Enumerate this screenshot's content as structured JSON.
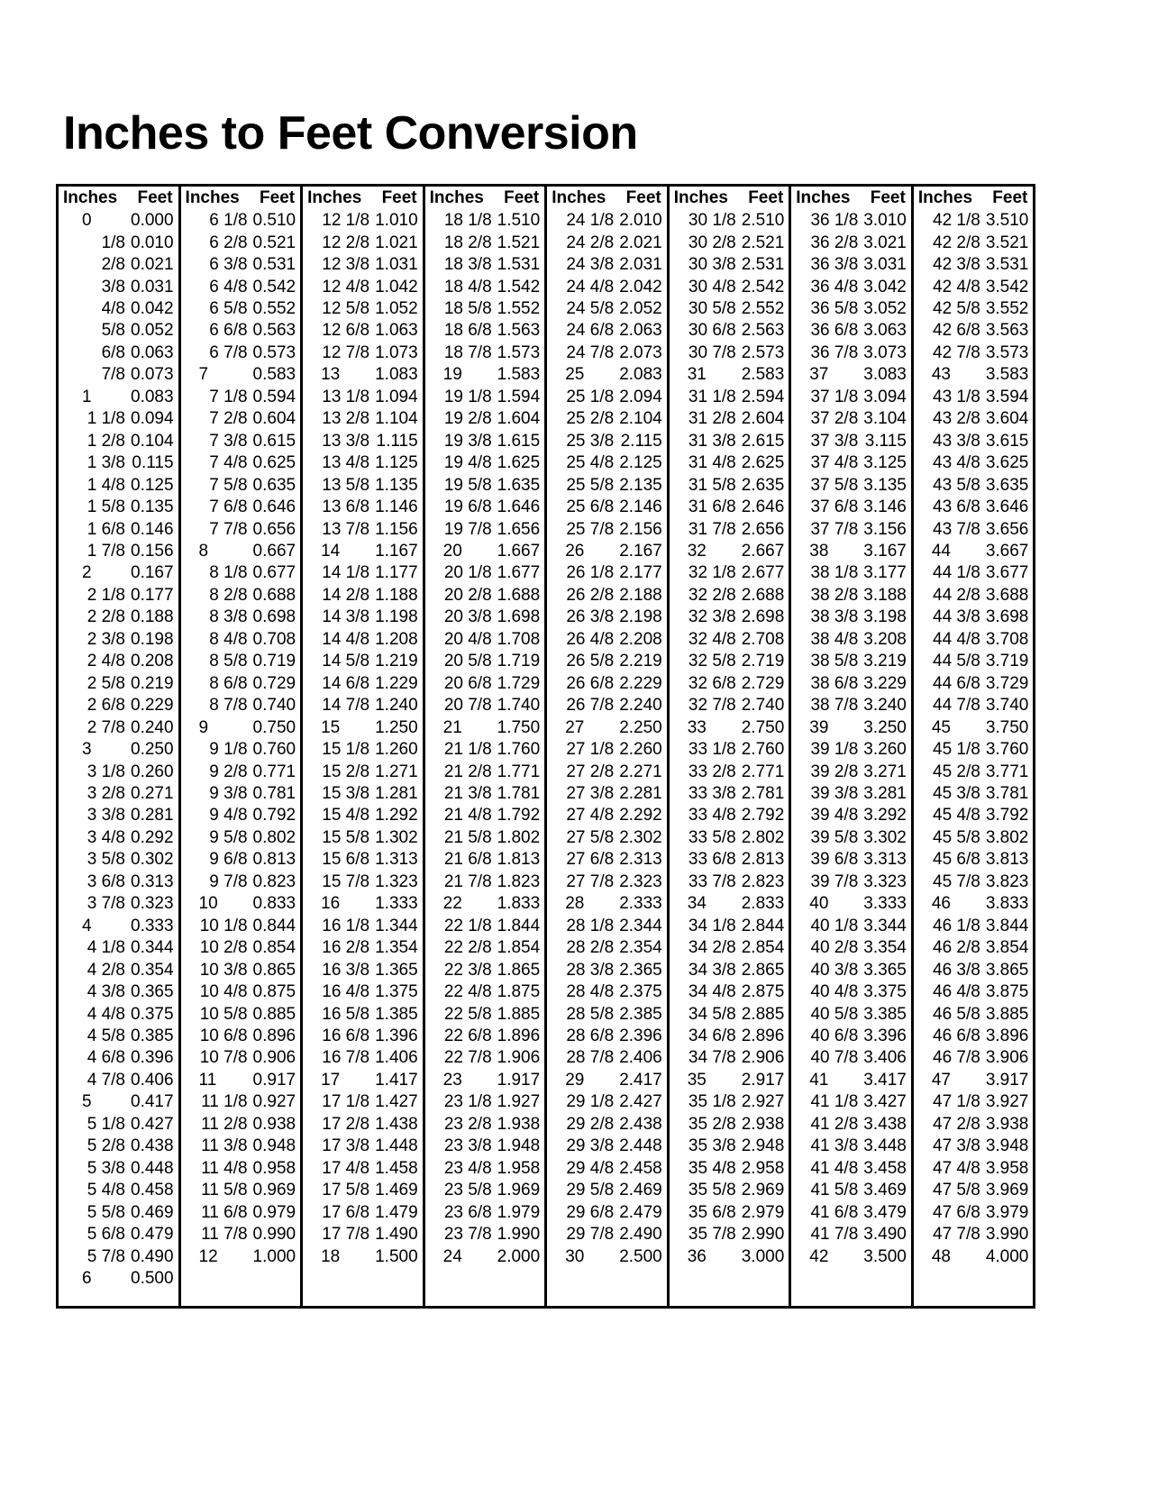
{
  "title": "Inches to Feet Conversion",
  "headers": {
    "inches": "Inches",
    "feet": "Feet"
  },
  "columns": [
    {
      "inches": [
        "0",
        "1/8",
        "2/8",
        "3/8",
        "4/8",
        "5/8",
        "6/8",
        "7/8",
        "1",
        "1 1/8",
        "1 2/8",
        "1 3/8",
        "1 4/8",
        "1 5/8",
        "1 6/8",
        "1 7/8",
        "2",
        "2 1/8",
        "2 2/8",
        "2 3/8",
        "2 4/8",
        "2 5/8",
        "2 6/8",
        "2 7/8",
        "3",
        "3 1/8",
        "3 2/8",
        "3 3/8",
        "3 4/8",
        "3 5/8",
        "3 6/8",
        "3 7/8",
        "4",
        "4 1/8",
        "4 2/8",
        "4 3/8",
        "4 4/8",
        "4 5/8",
        "4 6/8",
        "4 7/8",
        "5",
        "5 1/8",
        "5 2/8",
        "5 3/8",
        "5 4/8",
        "5 5/8",
        "5 6/8",
        "5 7/8",
        "6"
      ],
      "feet": [
        "0.000",
        "0.010",
        "0.021",
        "0.031",
        "0.042",
        "0.052",
        "0.063",
        "0.073",
        "0.083",
        "0.094",
        "0.104",
        "0.115",
        "0.125",
        "0.135",
        "0.146",
        "0.156",
        "0.167",
        "0.177",
        "0.188",
        "0.198",
        "0.208",
        "0.219",
        "0.229",
        "0.240",
        "0.250",
        "0.260",
        "0.271",
        "0.281",
        "0.292",
        "0.302",
        "0.313",
        "0.323",
        "0.333",
        "0.344",
        "0.354",
        "0.365",
        "0.375",
        "0.385",
        "0.396",
        "0.406",
        "0.417",
        "0.427",
        "0.438",
        "0.448",
        "0.458",
        "0.469",
        "0.479",
        "0.490",
        "0.500"
      ]
    },
    {
      "inches": [
        "6 1/8",
        "6 2/8",
        "6 3/8",
        "6 4/8",
        "6 5/8",
        "6 6/8",
        "6 7/8",
        "7",
        "7 1/8",
        "7 2/8",
        "7 3/8",
        "7 4/8",
        "7 5/8",
        "7 6/8",
        "7 7/8",
        "8",
        "8 1/8",
        "8 2/8",
        "8 3/8",
        "8 4/8",
        "8 5/8",
        "8 6/8",
        "8 7/8",
        "9",
        "9 1/8",
        "9 2/8",
        "9 3/8",
        "9 4/8",
        "9 5/8",
        "9 6/8",
        "9 7/8",
        "10",
        "10 1/8",
        "10 2/8",
        "10 3/8",
        "10 4/8",
        "10 5/8",
        "10 6/8",
        "10 7/8",
        "11",
        "11 1/8",
        "11 2/8",
        "11 3/8",
        "11 4/8",
        "11 5/8",
        "11 6/8",
        "11 7/8",
        "12"
      ],
      "feet": [
        "0.510",
        "0.521",
        "0.531",
        "0.542",
        "0.552",
        "0.563",
        "0.573",
        "0.583",
        "0.594",
        "0.604",
        "0.615",
        "0.625",
        "0.635",
        "0.646",
        "0.656",
        "0.667",
        "0.677",
        "0.688",
        "0.698",
        "0.708",
        "0.719",
        "0.729",
        "0.740",
        "0.750",
        "0.760",
        "0.771",
        "0.781",
        "0.792",
        "0.802",
        "0.813",
        "0.823",
        "0.833",
        "0.844",
        "0.854",
        "0.865",
        "0.875",
        "0.885",
        "0.896",
        "0.906",
        "0.917",
        "0.927",
        "0.938",
        "0.948",
        "0.958",
        "0.969",
        "0.979",
        "0.990",
        "1.000"
      ]
    },
    {
      "inches": [
        "12 1/8",
        "12 2/8",
        "12 3/8",
        "12 4/8",
        "12 5/8",
        "12 6/8",
        "12 7/8",
        "13",
        "13 1/8",
        "13 2/8",
        "13 3/8",
        "13 4/8",
        "13 5/8",
        "13 6/8",
        "13 7/8",
        "14",
        "14 1/8",
        "14 2/8",
        "14 3/8",
        "14 4/8",
        "14 5/8",
        "14 6/8",
        "14 7/8",
        "15",
        "15 1/8",
        "15 2/8",
        "15 3/8",
        "15 4/8",
        "15 5/8",
        "15 6/8",
        "15 7/8",
        "16",
        "16 1/8",
        "16 2/8",
        "16 3/8",
        "16 4/8",
        "16 5/8",
        "16 6/8",
        "16 7/8",
        "17",
        "17 1/8",
        "17 2/8",
        "17 3/8",
        "17 4/8",
        "17 5/8",
        "17 6/8",
        "17 7/8",
        "18"
      ],
      "feet": [
        "1.010",
        "1.021",
        "1.031",
        "1.042",
        "1.052",
        "1.063",
        "1.073",
        "1.083",
        "1.094",
        "1.104",
        "1.115",
        "1.125",
        "1.135",
        "1.146",
        "1.156",
        "1.167",
        "1.177",
        "1.188",
        "1.198",
        "1.208",
        "1.219",
        "1.229",
        "1.240",
        "1.250",
        "1.260",
        "1.271",
        "1.281",
        "1.292",
        "1.302",
        "1.313",
        "1.323",
        "1.333",
        "1.344",
        "1.354",
        "1.365",
        "1.375",
        "1.385",
        "1.396",
        "1.406",
        "1.417",
        "1.427",
        "1.438",
        "1.448",
        "1.458",
        "1.469",
        "1.479",
        "1.490",
        "1.500"
      ]
    },
    {
      "inches": [
        "18 1/8",
        "18 2/8",
        "18 3/8",
        "18 4/8",
        "18 5/8",
        "18 6/8",
        "18 7/8",
        "19",
        "19 1/8",
        "19 2/8",
        "19 3/8",
        "19 4/8",
        "19 5/8",
        "19 6/8",
        "19 7/8",
        "20",
        "20 1/8",
        "20 2/8",
        "20 3/8",
        "20 4/8",
        "20 5/8",
        "20 6/8",
        "20 7/8",
        "21",
        "21 1/8",
        "21 2/8",
        "21 3/8",
        "21 4/8",
        "21 5/8",
        "21 6/8",
        "21 7/8",
        "22",
        "22 1/8",
        "22 2/8",
        "22 3/8",
        "22 4/8",
        "22 5/8",
        "22 6/8",
        "22 7/8",
        "23",
        "23 1/8",
        "23 2/8",
        "23 3/8",
        "23 4/8",
        "23 5/8",
        "23 6/8",
        "23 7/8",
        "24"
      ],
      "feet": [
        "1.510",
        "1.521",
        "1.531",
        "1.542",
        "1.552",
        "1.563",
        "1.573",
        "1.583",
        "1.594",
        "1.604",
        "1.615",
        "1.625",
        "1.635",
        "1.646",
        "1.656",
        "1.667",
        "1.677",
        "1.688",
        "1.698",
        "1.708",
        "1.719",
        "1.729",
        "1.740",
        "1.750",
        "1.760",
        "1.771",
        "1.781",
        "1.792",
        "1.802",
        "1.813",
        "1.823",
        "1.833",
        "1.844",
        "1.854",
        "1.865",
        "1.875",
        "1.885",
        "1.896",
        "1.906",
        "1.917",
        "1.927",
        "1.938",
        "1.948",
        "1.958",
        "1.969",
        "1.979",
        "1.990",
        "2.000"
      ]
    },
    {
      "inches": [
        "24 1/8",
        "24 2/8",
        "24 3/8",
        "24 4/8",
        "24 5/8",
        "24 6/8",
        "24 7/8",
        "25",
        "25 1/8",
        "25 2/8",
        "25 3/8",
        "25 4/8",
        "25 5/8",
        "25 6/8",
        "25 7/8",
        "26",
        "26 1/8",
        "26 2/8",
        "26 3/8",
        "26 4/8",
        "26 5/8",
        "26 6/8",
        "26 7/8",
        "27",
        "27 1/8",
        "27 2/8",
        "27 3/8",
        "27 4/8",
        "27 5/8",
        "27 6/8",
        "27 7/8",
        "28",
        "28 1/8",
        "28 2/8",
        "28 3/8",
        "28 4/8",
        "28 5/8",
        "28 6/8",
        "28 7/8",
        "29",
        "29 1/8",
        "29 2/8",
        "29 3/8",
        "29 4/8",
        "29 5/8",
        "29 6/8",
        "29 7/8",
        "30"
      ],
      "feet": [
        "2.010",
        "2.021",
        "2.031",
        "2.042",
        "2.052",
        "2.063",
        "2.073",
        "2.083",
        "2.094",
        "2.104",
        "2.115",
        "2.125",
        "2.135",
        "2.146",
        "2.156",
        "2.167",
        "2.177",
        "2.188",
        "2.198",
        "2.208",
        "2.219",
        "2.229",
        "2.240",
        "2.250",
        "2.260",
        "2.271",
        "2.281",
        "2.292",
        "2.302",
        "2.313",
        "2.323",
        "2.333",
        "2.344",
        "2.354",
        "2.365",
        "2.375",
        "2.385",
        "2.396",
        "2.406",
        "2.417",
        "2.427",
        "2.438",
        "2.448",
        "2.458",
        "2.469",
        "2.479",
        "2.490",
        "2.500"
      ]
    },
    {
      "inches": [
        "30 1/8",
        "30 2/8",
        "30 3/8",
        "30 4/8",
        "30 5/8",
        "30 6/8",
        "30 7/8",
        "31",
        "31 1/8",
        "31 2/8",
        "31 3/8",
        "31 4/8",
        "31 5/8",
        "31 6/8",
        "31 7/8",
        "32",
        "32 1/8",
        "32 2/8",
        "32 3/8",
        "32 4/8",
        "32 5/8",
        "32 6/8",
        "32 7/8",
        "33",
        "33 1/8",
        "33 2/8",
        "33 3/8",
        "33 4/8",
        "33 5/8",
        "33 6/8",
        "33 7/8",
        "34",
        "34 1/8",
        "34 2/8",
        "34 3/8",
        "34 4/8",
        "34 5/8",
        "34 6/8",
        "34 7/8",
        "35",
        "35 1/8",
        "35 2/8",
        "35 3/8",
        "35 4/8",
        "35 5/8",
        "35 6/8",
        "35 7/8",
        "36"
      ],
      "feet": [
        "2.510",
        "2.521",
        "2.531",
        "2.542",
        "2.552",
        "2.563",
        "2.573",
        "2.583",
        "2.594",
        "2.604",
        "2.615",
        "2.625",
        "2.635",
        "2.646",
        "2.656",
        "2.667",
        "2.677",
        "2.688",
        "2.698",
        "2.708",
        "2.719",
        "2.729",
        "2.740",
        "2.750",
        "2.760",
        "2.771",
        "2.781",
        "2.792",
        "2.802",
        "2.813",
        "2.823",
        "2.833",
        "2.844",
        "2.854",
        "2.865",
        "2.875",
        "2.885",
        "2.896",
        "2.906",
        "2.917",
        "2.927",
        "2.938",
        "2.948",
        "2.958",
        "2.969",
        "2.979",
        "2.990",
        "3.000"
      ]
    },
    {
      "inches": [
        "36 1/8",
        "36 2/8",
        "36 3/8",
        "36 4/8",
        "36 5/8",
        "36 6/8",
        "36 7/8",
        "37",
        "37 1/8",
        "37 2/8",
        "37 3/8",
        "37 4/8",
        "37 5/8",
        "37 6/8",
        "37 7/8",
        "38",
        "38 1/8",
        "38 2/8",
        "38 3/8",
        "38 4/8",
        "38 5/8",
        "38 6/8",
        "38 7/8",
        "39",
        "39 1/8",
        "39 2/8",
        "39 3/8",
        "39 4/8",
        "39 5/8",
        "39 6/8",
        "39 7/8",
        "40",
        "40 1/8",
        "40 2/8",
        "40 3/8",
        "40 4/8",
        "40 5/8",
        "40 6/8",
        "40 7/8",
        "41",
        "41 1/8",
        "41 2/8",
        "41 3/8",
        "41 4/8",
        "41 5/8",
        "41 6/8",
        "41 7/8",
        "42"
      ],
      "feet": [
        "3.010",
        "3.021",
        "3.031",
        "3.042",
        "3.052",
        "3.063",
        "3.073",
        "3.083",
        "3.094",
        "3.104",
        "3.115",
        "3.125",
        "3.135",
        "3.146",
        "3.156",
        "3.167",
        "3.177",
        "3.188",
        "3.198",
        "3.208",
        "3.219",
        "3.229",
        "3.240",
        "3.250",
        "3.260",
        "3.271",
        "3.281",
        "3.292",
        "3.302",
        "3.313",
        "3.323",
        "3.333",
        "3.344",
        "3.354",
        "3.365",
        "3.375",
        "3.385",
        "3.396",
        "3.406",
        "3.417",
        "3.427",
        "3.438",
        "3.448",
        "3.458",
        "3.469",
        "3.479",
        "3.490",
        "3.500"
      ]
    },
    {
      "inches": [
        "42 1/8",
        "42 2/8",
        "42 3/8",
        "42 4/8",
        "42 5/8",
        "42 6/8",
        "42 7/8",
        "43",
        "43 1/8",
        "43 2/8",
        "43 3/8",
        "43 4/8",
        "43 5/8",
        "43 6/8",
        "43 7/8",
        "44",
        "44 1/8",
        "44 2/8",
        "44 3/8",
        "44 4/8",
        "44 5/8",
        "44 6/8",
        "44 7/8",
        "45",
        "45 1/8",
        "45 2/8",
        "45 3/8",
        "45 4/8",
        "45 5/8",
        "45 6/8",
        "45 7/8",
        "46",
        "46 1/8",
        "46 2/8",
        "46 3/8",
        "46 4/8",
        "46 5/8",
        "46 6/8",
        "46 7/8",
        "47",
        "47 1/8",
        "47 2/8",
        "47 3/8",
        "47 4/8",
        "47 5/8",
        "47 6/8",
        "47 7/8",
        "48"
      ],
      "feet": [
        "3.510",
        "3.521",
        "3.531",
        "3.542",
        "3.552",
        "3.563",
        "3.573",
        "3.583",
        "3.594",
        "3.604",
        "3.615",
        "3.625",
        "3.635",
        "3.646",
        "3.656",
        "3.667",
        "3.677",
        "3.688",
        "3.698",
        "3.708",
        "3.719",
        "3.729",
        "3.740",
        "3.750",
        "3.760",
        "3.771",
        "3.781",
        "3.792",
        "3.802",
        "3.813",
        "3.823",
        "3.833",
        "3.844",
        "3.854",
        "3.865",
        "3.875",
        "3.885",
        "3.896",
        "3.906",
        "3.917",
        "3.927",
        "3.938",
        "3.948",
        "3.958",
        "3.969",
        "3.979",
        "3.990",
        "4.000"
      ]
    }
  ]
}
